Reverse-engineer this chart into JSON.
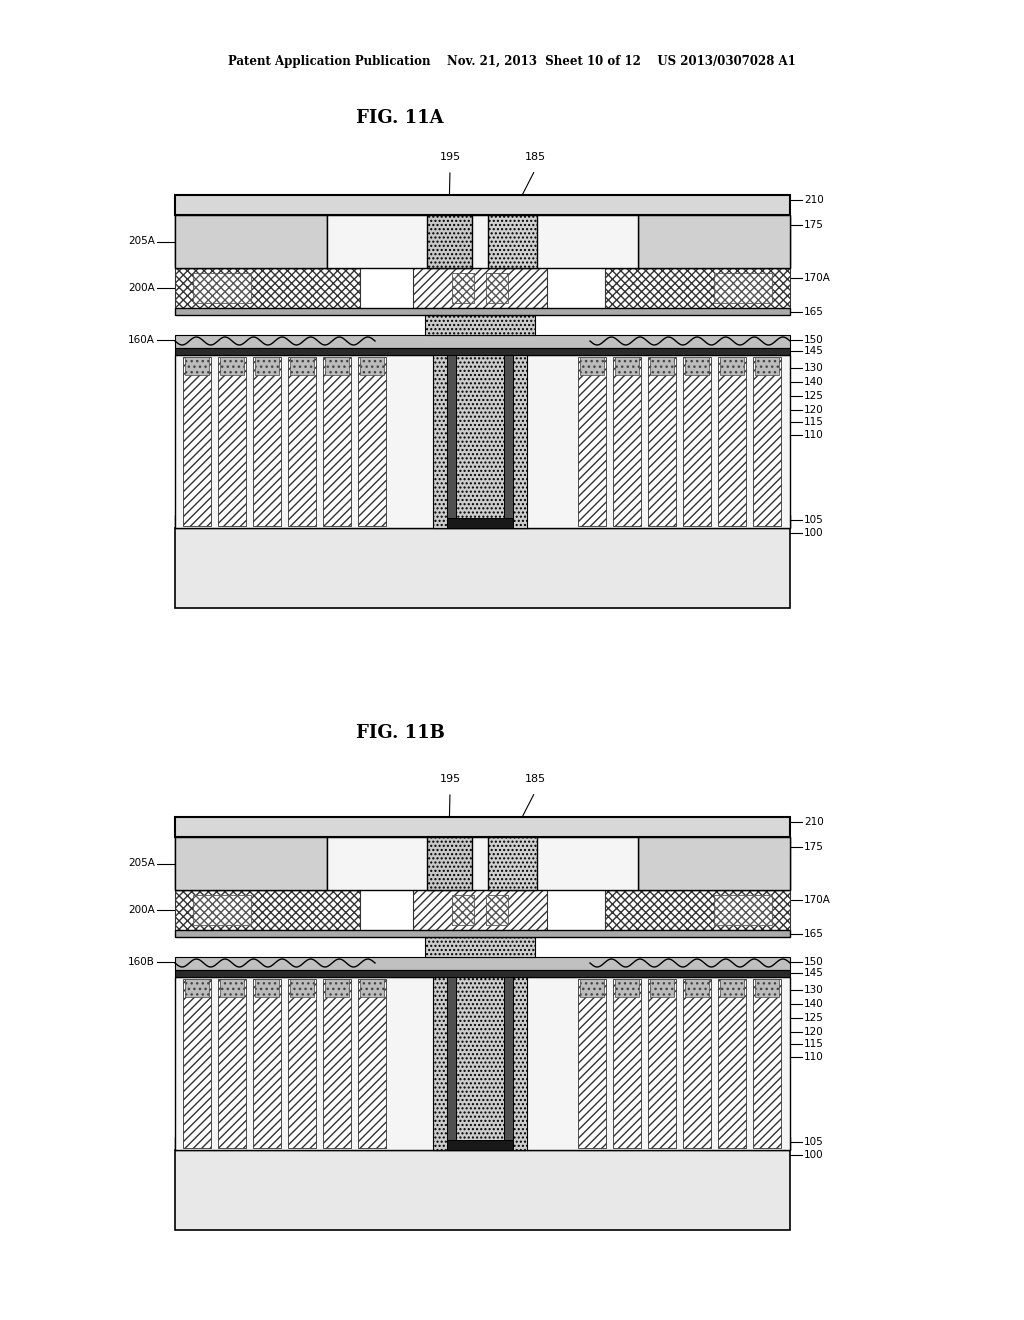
{
  "title_top": "Patent Application Publication    Nov. 21, 2013  Sheet 10 of 12    US 2013/0307028 A1",
  "fig_a_title": "FIG. 11A",
  "fig_b_title": "FIG. 11B",
  "bg_color": "#ffffff",
  "labels_right": [
    "210",
    "175",
    "170A",
    "165",
    "150",
    "145",
    "130",
    "140",
    "125",
    "120",
    "115",
    "110",
    "105",
    "100"
  ],
  "labels_left_a": [
    "205A",
    "200A",
    "160A"
  ],
  "labels_left_b": [
    "205A",
    "200A",
    "160B"
  ],
  "labels_top": [
    "195",
    "185"
  ]
}
